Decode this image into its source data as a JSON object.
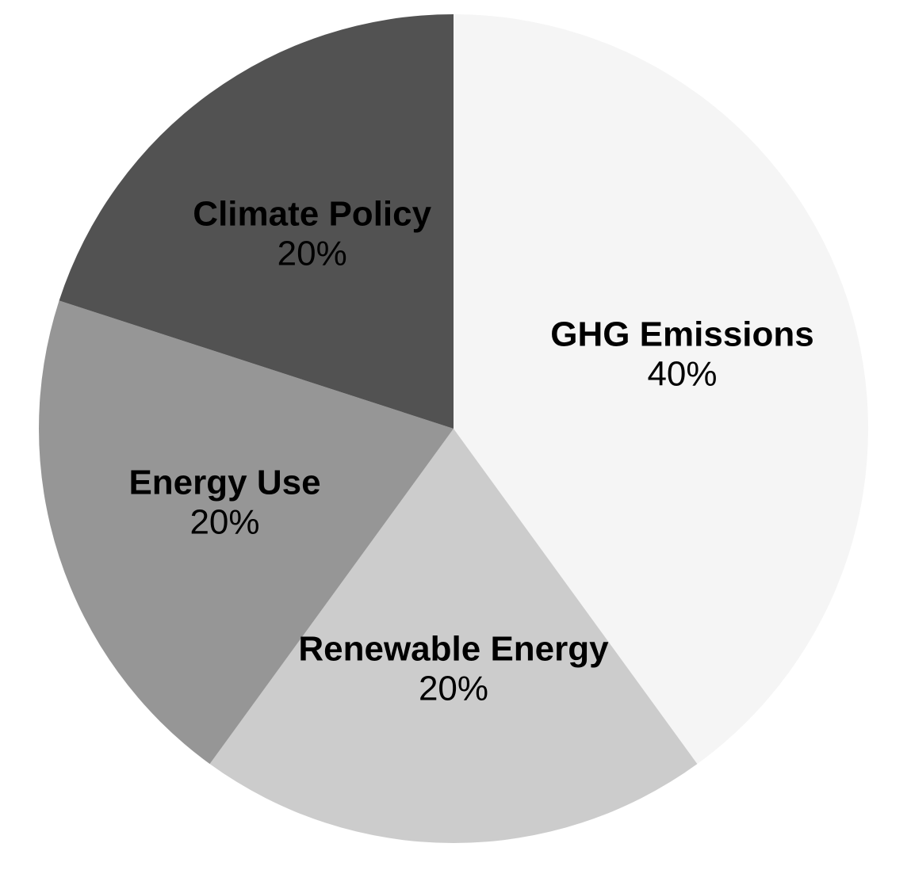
{
  "chart_data": {
    "type": "pie",
    "categories": [
      "GHG Emissions",
      "Renewable Energy",
      "Energy Use",
      "Climate Policy"
    ],
    "values": [
      40,
      20,
      20,
      20
    ],
    "value_labels": [
      "40%",
      "20%",
      "20%",
      "20%"
    ],
    "colors": [
      "#f5f5f5",
      "#cccccc",
      "#969696",
      "#525252"
    ],
    "start_angle_deg": 0,
    "direction": "clockwise",
    "legend": "none"
  }
}
